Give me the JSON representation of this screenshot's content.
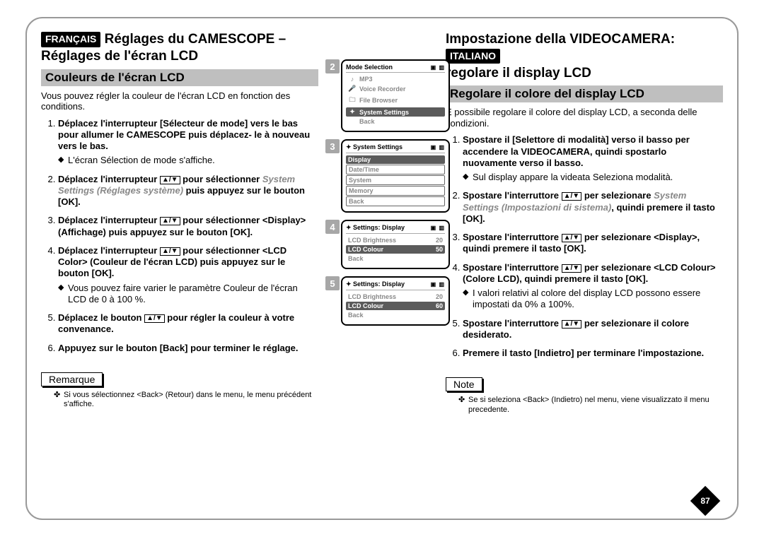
{
  "page_number": "87",
  "colors": {
    "subhead_bg": "#bfbfbf",
    "badge_bg": "#a7a7a7",
    "screen_sel_bg": "#5b5b5b",
    "italic_gray": "#888888"
  },
  "left": {
    "lang_tag": "FRANÇAIS",
    "title_l1": "Réglages du CAMESCOPE –",
    "title_l2": "Réglages de l'écran LCD",
    "subhead": "Couleurs de l'écran LCD",
    "intro": "Vous pouvez régler la couleur de l'écran LCD en fonction des conditions.",
    "steps": [
      {
        "main": "Déplacez l'interrupteur [Sélecteur de mode] vers le bas pour allumer le CAMESCOPE puis déplacez- le à nouveau vers le bas.",
        "sub": [
          "L'écran Sélection de mode s'affiche."
        ]
      },
      {
        "main_prefix": "Déplacez l'interrupteur ",
        "main_mid": " pour sélectionner ",
        "italic1": "System Settings",
        "italic2": "(Réglages système)",
        "main_suffix": " puis appuyez sur le bouton [OK]."
      },
      {
        "main_prefix": "Déplacez l'interrupteur ",
        "main_suffix": " pour sélectionner <Display> (Affichage) puis appuyez sur le bouton [OK]."
      },
      {
        "main_prefix": "Déplacez l'interrupteur ",
        "main_suffix": " pour sélectionner <LCD Color> (Couleur de l'écran LCD) puis appuyez sur le bouton [OK].",
        "sub": [
          "Vous pouvez faire varier le paramètre Couleur de l'écran LCD de 0 à 100 %."
        ]
      },
      {
        "main_prefix": "Déplacez le bouton ",
        "main_suffix": " pour régler la couleur à votre convenance."
      },
      {
        "main": "Appuyez sur le bouton [Back] pour terminer le réglage."
      }
    ],
    "note_tag": "Remarque",
    "note": "Si vous sélectionnez <Back> (Retour) dans le menu, le menu précédent s'affiche."
  },
  "right": {
    "lang_tag": "ITALIANO",
    "title_l1": "Impostazione della VIDEOCAMERA:",
    "title_l2": "regolare il display LCD",
    "subhead": "Regolare il colore del display LCD",
    "intro": "È possibile regolare il colore del display LCD, a seconda delle condizioni.",
    "steps": [
      {
        "main": "Spostare il [Selettore di modalità] verso il basso per accendere la VIDEOCAMERA, quindi spostarlo nuovamente verso il basso.",
        "sub": [
          "Sul display appare la videata Seleziona modalità."
        ]
      },
      {
        "main_prefix": "Spostare l'interruttore ",
        "main_mid": " per selezionare ",
        "italic1": "System Settings",
        "italic2": "(Impostazioni di sistema)",
        "main_suffix": ", quindi premere il tasto [OK]."
      },
      {
        "main_prefix": "Spostare l'interruttore ",
        "main_suffix": " per selezionare <Display>, quindi premere il tasto [OK]."
      },
      {
        "main_prefix": "Spostare l'interruttore ",
        "main_suffix": " per selezionare <LCD Colour> (Colore LCD), quindi premere il tasto [OK].",
        "sub": [
          "I valori relativi al colore del display LCD possono essere impostati da 0% a 100%."
        ]
      },
      {
        "main_prefix": "Spostare l'interruttore ",
        "main_suffix": " per selezionare il colore desiderato."
      },
      {
        "main": "Premere il tasto [Indietro] per terminare l'impostazione."
      }
    ],
    "note_tag": "Note",
    "note": "Se si seleziona <Back> (Indietro) nel menu, viene visualizzato il menu precedente."
  },
  "updown_symbol": "▲/▼",
  "screens": [
    {
      "badge": "2",
      "title": "Mode Selection",
      "rows": [
        {
          "icon": "♪",
          "label": "MP3"
        },
        {
          "icon": "🎤",
          "label": "Voice Recorder"
        },
        {
          "icon": "🗀",
          "label": "File Browser"
        },
        {
          "icon": "✦",
          "label": "System Settings",
          "selected": true
        },
        {
          "icon": "",
          "label": "Back"
        }
      ]
    },
    {
      "badge": "3",
      "title_prefix": "✦ System Settings",
      "rows": [
        {
          "label": "Display",
          "selected": true
        },
        {
          "label": "Date/Time",
          "boxed": true
        },
        {
          "label": "System",
          "boxed": true
        },
        {
          "label": "Memory",
          "boxed": true
        },
        {
          "label": "Back",
          "boxed": true
        }
      ]
    },
    {
      "badge": "4",
      "title_prefix": "✦ Settings: Display",
      "rows": [
        {
          "label": "LCD Brightness",
          "val": "20"
        },
        {
          "label": "LCD Colour",
          "val": "50",
          "selected": true
        },
        {
          "label": "Back"
        }
      ]
    },
    {
      "badge": "5",
      "title_prefix": "✦ Settings: Display",
      "rows": [
        {
          "label": "LCD Brightness",
          "val": "20"
        },
        {
          "label": "LCD Colour",
          "val": "60",
          "selected": true
        },
        {
          "label": "Back"
        }
      ]
    }
  ]
}
